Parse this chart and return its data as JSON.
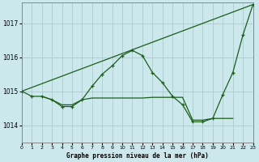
{
  "title": "Graphe pression niveau de la mer (hPa)",
  "bg_color": "#cce8ec",
  "grid_color": "#aacccc",
  "line_color": "#1a5e1a",
  "xlim": [
    0,
    23
  ],
  "ylim": [
    1013.5,
    1017.6
  ],
  "yticks": [
    1014,
    1015,
    1016,
    1017
  ],
  "xticks": [
    0,
    1,
    2,
    3,
    4,
    5,
    6,
    7,
    8,
    9,
    10,
    11,
    12,
    13,
    14,
    15,
    16,
    17,
    18,
    19,
    20,
    21,
    22,
    23
  ],
  "series": [
    [
      0,
      1015.0
    ],
    [
      1,
      1014.85
    ],
    [
      2,
      1014.85
    ],
    [
      3,
      1014.75
    ],
    [
      4,
      1014.55
    ],
    [
      5,
      1014.55
    ],
    [
      6,
      1014.75
    ],
    [
      7,
      1015.15
    ],
    [
      8,
      1015.5
    ],
    [
      9,
      1015.75
    ],
    [
      10,
      1016.05
    ],
    [
      11,
      1016.2
    ],
    [
      12,
      1016.05
    ],
    [
      13,
      1015.55
    ],
    [
      14,
      1015.25
    ],
    [
      15,
      1014.85
    ],
    [
      16,
      1014.6
    ],
    [
      17,
      1014.1
    ],
    [
      18,
      1014.1
    ],
    [
      19,
      1014.2
    ],
    [
      20,
      1014.9
    ],
    [
      21,
      1015.55
    ],
    [
      22,
      1016.65
    ],
    [
      23,
      1017.55
    ]
  ],
  "line_straight": [
    [
      0,
      1015.0
    ],
    [
      23,
      1017.55
    ]
  ],
  "line_flat": [
    [
      2,
      1014.85
    ],
    [
      3,
      1014.75
    ],
    [
      4,
      1014.6
    ],
    [
      5,
      1014.6
    ],
    [
      6,
      1014.75
    ],
    [
      7,
      1014.8
    ],
    [
      8,
      1014.8
    ],
    [
      9,
      1014.8
    ],
    [
      10,
      1014.8
    ],
    [
      11,
      1014.8
    ],
    [
      12,
      1014.8
    ],
    [
      13,
      1014.82
    ],
    [
      14,
      1014.82
    ],
    [
      15,
      1014.82
    ],
    [
      16,
      1014.82
    ],
    [
      17,
      1014.15
    ],
    [
      18,
      1014.15
    ],
    [
      19,
      1014.2
    ],
    [
      20,
      1014.2
    ],
    [
      21,
      1014.2
    ]
  ]
}
